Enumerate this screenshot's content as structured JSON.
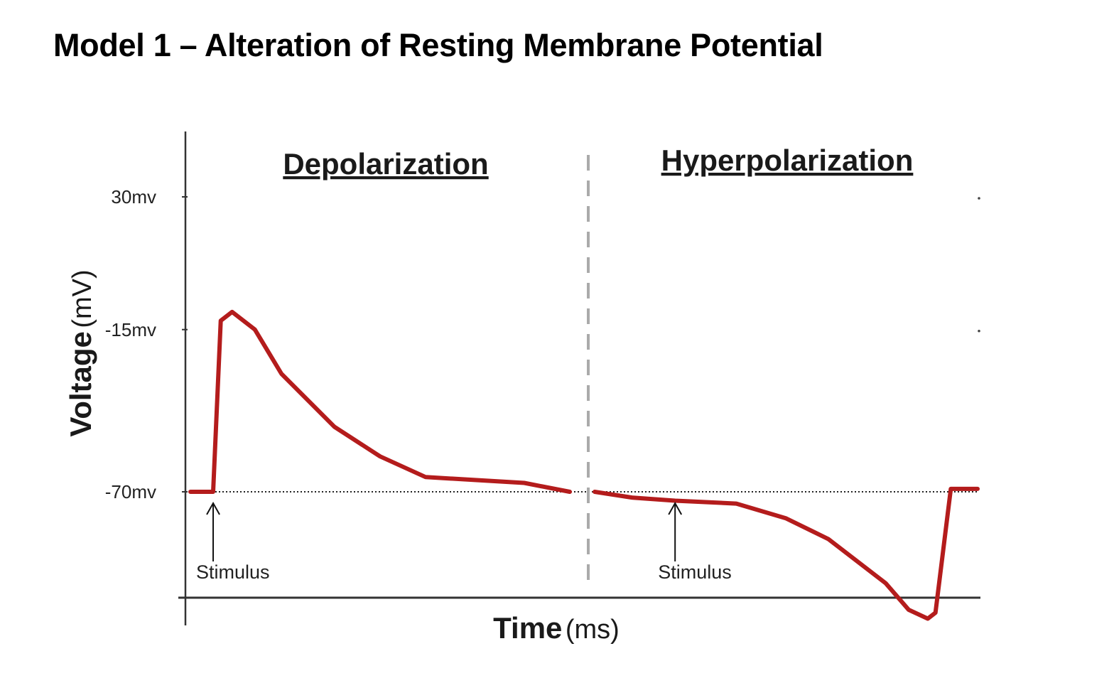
{
  "page": {
    "title": "Model 1 – Alteration of Resting Membrane Potential"
  },
  "colors": {
    "trace": "#b41c1c",
    "axis": "#333333",
    "resting_line": "#222222",
    "divider": "#aaaaaa"
  },
  "chart_data": {
    "type": "line",
    "xlabel_bold": "Time",
    "xlabel_rest": "(ms)",
    "ylabel_bold": "Voltage",
    "ylabel_rest": "(mV)",
    "y_ticks": [
      {
        "value": 30,
        "label": "30mv"
      },
      {
        "value": -15,
        "label": "-15mv"
      },
      {
        "value": -70,
        "label": "-70mv"
      }
    ],
    "ylim": [
      -115,
      62
    ],
    "resting_potential": -70,
    "grid": false,
    "panels": [
      {
        "title": "Depolarization",
        "stimulus_label": "Stimulus",
        "stimulus_x": 6,
        "xlim": [
          0,
          100
        ],
        "points": [
          {
            "x": 0,
            "y": -70
          },
          {
            "x": 6,
            "y": -70
          },
          {
            "x": 8,
            "y": -12
          },
          {
            "x": 11,
            "y": -9
          },
          {
            "x": 17,
            "y": -15
          },
          {
            "x": 24,
            "y": -30
          },
          {
            "x": 38,
            "y": -48
          },
          {
            "x": 50,
            "y": -58
          },
          {
            "x": 62,
            "y": -65
          },
          {
            "x": 75,
            "y": -66
          },
          {
            "x": 88,
            "y": -67
          },
          {
            "x": 100,
            "y": -70
          }
        ]
      },
      {
        "title": "Hyperpolarization",
        "stimulus_label": "Stimulus",
        "stimulus_x": 21,
        "xlim": [
          0,
          100
        ],
        "points": [
          {
            "x": 0,
            "y": -70
          },
          {
            "x": 10,
            "y": -72
          },
          {
            "x": 21,
            "y": -73
          },
          {
            "x": 37,
            "y": -74
          },
          {
            "x": 50,
            "y": -79
          },
          {
            "x": 61,
            "y": -86
          },
          {
            "x": 76,
            "y": -101
          },
          {
            "x": 82,
            "y": -110
          },
          {
            "x": 87,
            "y": -113
          },
          {
            "x": 89,
            "y": -111
          },
          {
            "x": 93,
            "y": -69
          },
          {
            "x": 100,
            "y": -69
          }
        ]
      }
    ]
  }
}
